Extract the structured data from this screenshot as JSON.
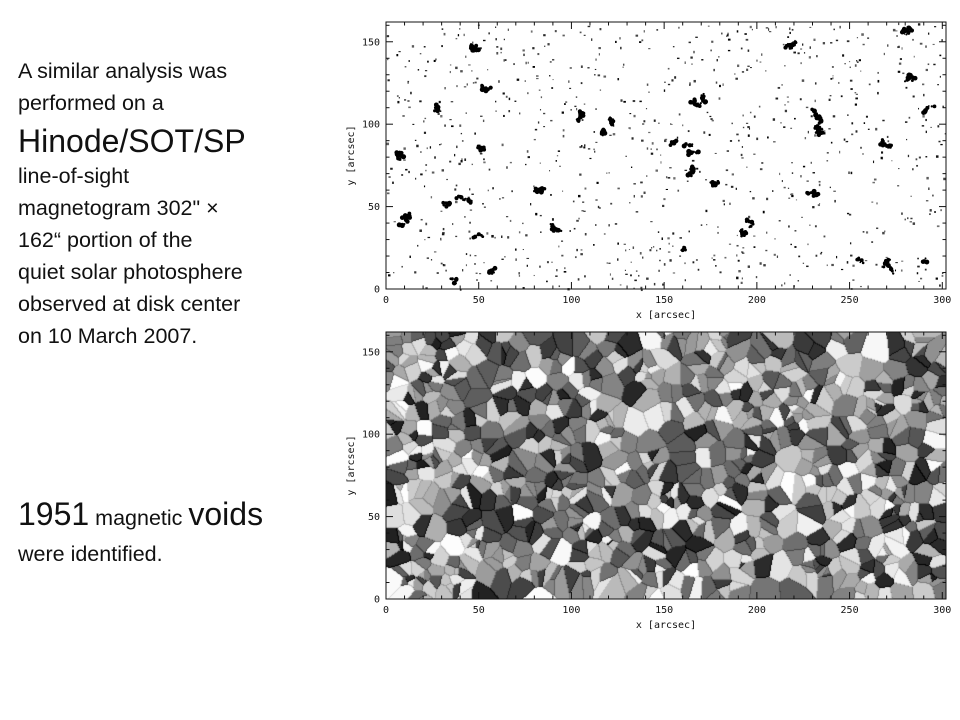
{
  "slide": {
    "para_line1": "A similar analysis was",
    "para_line2": "performed on a",
    "instrument": "Hinode/SOT/SP",
    "para_line3": "line-of-sight",
    "para_line4": "magnetogram 302\" ×",
    "para_line5": "162“ portion of the",
    "para_line6": "quiet solar photosphere",
    "para_line7": "observed at disk center",
    "para_line8": "on 10 March 2007.",
    "voids_count": "1951",
    "voids_mid": " magnetic ",
    "voids_word": "voids",
    "voids_tail": "were identified."
  },
  "chart_data": [
    {
      "type": "heatmap",
      "xlabel": "x [arcsec]",
      "ylabel": "y [arcsec]",
      "xlim": [
        0,
        302
      ],
      "ylim": [
        0,
        162
      ],
      "xticks": [
        "0",
        "50",
        "100",
        "150",
        "200",
        "250",
        "300"
      ],
      "yticks": [
        "0",
        "50",
        "100",
        "150"
      ],
      "colormap": "grayscale",
      "feature_color": "#000000",
      "background_color": "#ffffff"
    },
    {
      "type": "heatmap",
      "xlabel": "x [arcsec]",
      "ylabel": "y [arcsec]",
      "xlim": [
        0,
        302
      ],
      "ylim": [
        0,
        162
      ],
      "xticks": [
        "0",
        "50",
        "100",
        "150",
        "200",
        "250",
        "300"
      ],
      "yticks": [
        "0",
        "50",
        "100",
        "150"
      ],
      "colormap": "grayscale",
      "segment_count": 1951
    }
  ]
}
